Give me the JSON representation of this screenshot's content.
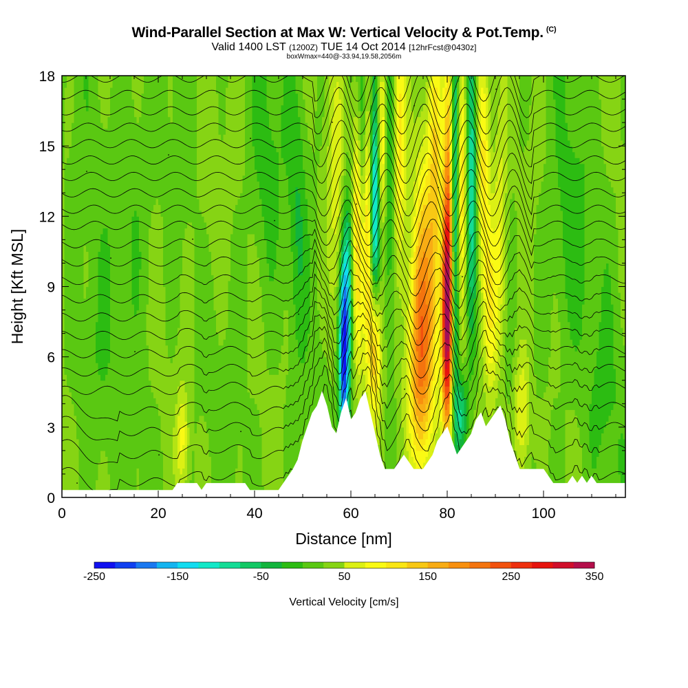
{
  "header": {
    "title": "Wind-Parallel Section at Max W: Vertical Velocity & Pot.Temp.",
    "copyright": "(C)",
    "valid_main": "Valid 1400 LST",
    "valid_utc": "(1200Z)",
    "valid_date": "TUE 14 Oct 2014",
    "valid_fcst": "[12hrFcst@0430z]",
    "box_info": "boxWmax=440@-33.94,19.58,2056m"
  },
  "colors": {
    "palette": [
      "#1010f0",
      "#1040f0",
      "#1a78f0",
      "#14b4f0",
      "#12dcf0",
      "#12e8c8",
      "#14dc96",
      "#12c864",
      "#12b43c",
      "#2cbc12",
      "#5ac812",
      "#86d414",
      "#b4e414",
      "#dcf014",
      "#fafa14",
      "#fae614",
      "#f8c814",
      "#f8ac14",
      "#f8900e",
      "#f4740e",
      "#f2520e",
      "#ee300e",
      "#e6140e",
      "#d00e2a",
      "#b40e4a",
      "#a00e5a"
    ],
    "terrain": "#ffffff",
    "contour": "#000000"
  },
  "chart_data": {
    "type": "cross-section",
    "title": "Wind-Parallel Section at Max W: Vertical Velocity & Pot.Temp.",
    "xlabel": "Distance [nm]",
    "ylabel": "Height [Kft MSL]",
    "xlim": [
      0,
      117
    ],
    "ylim": [
      0,
      18
    ],
    "x_ticks": [
      0,
      20,
      40,
      60,
      80,
      100
    ],
    "y_ticks": [
      0,
      3,
      6,
      9,
      12,
      15,
      18
    ],
    "colorbar": {
      "title": "Vertical Velocity [cm/s]",
      "min": -250,
      "max": 350,
      "step": 25,
      "labels": [
        "-250",
        "-150",
        "-50",
        "50",
        "150",
        "250",
        "350"
      ],
      "label_values": [
        -250,
        -150,
        -50,
        50,
        150,
        250,
        350
      ]
    },
    "terrain_profile": [
      [
        0,
        0.3
      ],
      [
        2,
        0.3
      ],
      [
        5,
        0.3
      ],
      [
        10,
        0.3
      ],
      [
        15,
        0.3
      ],
      [
        20,
        0.3
      ],
      [
        23,
        0.3
      ],
      [
        24,
        0.6
      ],
      [
        26,
        0.6
      ],
      [
        28,
        0.6
      ],
      [
        29,
        0.3
      ],
      [
        30,
        0.6
      ],
      [
        35,
        0.6
      ],
      [
        38,
        0.6
      ],
      [
        39,
        0.3
      ],
      [
        45,
        0.3
      ],
      [
        46,
        0.6
      ],
      [
        47,
        0.9
      ],
      [
        48,
        1.2
      ],
      [
        49,
        1.6
      ],
      [
        50,
        2.4
      ],
      [
        51,
        3.0
      ],
      [
        52,
        3.6
      ],
      [
        53,
        3.9
      ],
      [
        54,
        4.5
      ],
      [
        55,
        3.9
      ],
      [
        56,
        3.0
      ],
      [
        57,
        2.7
      ],
      [
        58,
        3.6
      ],
      [
        59,
        4.2
      ],
      [
        60,
        3.3
      ],
      [
        61,
        3.6
      ],
      [
        62,
        4.2
      ],
      [
        63,
        4.5
      ],
      [
        64,
        3.6
      ],
      [
        65,
        2.7
      ],
      [
        66,
        1.8
      ],
      [
        67,
        1.2
      ],
      [
        69,
        1.2
      ],
      [
        70,
        1.5
      ],
      [
        71,
        1.8
      ],
      [
        72,
        1.5
      ],
      [
        73,
        1.2
      ],
      [
        75,
        1.2
      ],
      [
        76,
        1.5
      ],
      [
        77,
        1.8
      ],
      [
        78,
        2.4
      ],
      [
        79,
        2.7
      ],
      [
        80,
        3.0
      ],
      [
        81,
        2.4
      ],
      [
        82,
        1.8
      ],
      [
        83,
        2.1
      ],
      [
        84,
        2.4
      ],
      [
        85,
        2.7
      ],
      [
        86,
        3.3
      ],
      [
        87,
        3.6
      ],
      [
        88,
        3.0
      ],
      [
        89,
        3.3
      ],
      [
        90,
        3.6
      ],
      [
        91,
        3.9
      ],
      [
        92,
        3.3
      ],
      [
        93,
        2.4
      ],
      [
        94,
        1.8
      ],
      [
        95,
        1.2
      ],
      [
        100,
        1.2
      ],
      [
        101,
        0.9
      ],
      [
        102,
        0.6
      ],
      [
        105,
        0.6
      ],
      [
        106,
        0.9
      ],
      [
        107,
        0.6
      ],
      [
        108,
        0.9
      ],
      [
        109,
        0.6
      ],
      [
        110,
        0.9
      ],
      [
        111,
        0.6
      ],
      [
        117,
        0.6
      ]
    ],
    "w_features": [
      {
        "x": 58.5,
        "y": 6.0,
        "sx": 0.7,
        "sy": 3.0,
        "w": -240
      },
      {
        "x": 59.5,
        "y": 9.0,
        "sx": 0.8,
        "sy": 3.0,
        "w": -120
      },
      {
        "x": 61.5,
        "y": 11.5,
        "sx": 0.9,
        "sy": 4.0,
        "w": 140
      },
      {
        "x": 62.5,
        "y": 14.5,
        "sx": 0.8,
        "sy": 3.5,
        "w": -90
      },
      {
        "x": 63.5,
        "y": 12.0,
        "sx": 0.7,
        "sy": 4.0,
        "w": 160
      },
      {
        "x": 65.0,
        "y": 12.5,
        "sx": 0.8,
        "sy": 4.0,
        "w": -180
      },
      {
        "x": 65.0,
        "y": 6.5,
        "sx": 0.9,
        "sy": 2.2,
        "w": 180
      },
      {
        "x": 66.5,
        "y": 15.0,
        "sx": 0.8,
        "sy": 3.0,
        "w": 150
      },
      {
        "x": 68.0,
        "y": 14.0,
        "sx": 1.0,
        "sy": 4.0,
        "w": -80
      },
      {
        "x": 70.0,
        "y": 15.0,
        "sx": 1.1,
        "sy": 4.0,
        "w": 120
      },
      {
        "x": 74.5,
        "y": 5.5,
        "sx": 2.0,
        "sy": 3.5,
        "w": 200
      },
      {
        "x": 75.0,
        "y": 11.0,
        "sx": 1.6,
        "sy": 3.5,
        "w": 90
      },
      {
        "x": 77.5,
        "y": 14.0,
        "sx": 1.0,
        "sy": 5.0,
        "w": 110
      },
      {
        "x": 80.0,
        "y": 7.5,
        "sx": 0.8,
        "sy": 3.5,
        "w": 330
      },
      {
        "x": 80.5,
        "y": 14.0,
        "sx": 0.8,
        "sy": 5.0,
        "w": 180
      },
      {
        "x": 81.5,
        "y": 12.0,
        "sx": 0.7,
        "sy": 6.0,
        "w": -200
      },
      {
        "x": 83.0,
        "y": 3.5,
        "sx": 0.9,
        "sy": 1.2,
        "w": -100
      },
      {
        "x": 83.0,
        "y": 14.0,
        "sx": 0.8,
        "sy": 4.0,
        "w": 140
      },
      {
        "x": 85.0,
        "y": 14.0,
        "sx": 0.8,
        "sy": 5.0,
        "w": -120
      },
      {
        "x": 87.5,
        "y": 14.5,
        "sx": 1.0,
        "sy": 4.0,
        "w": 120
      },
      {
        "x": 89.0,
        "y": 8.0,
        "sx": 1.0,
        "sy": 3.0,
        "w": 90
      },
      {
        "x": 91.0,
        "y": 11.0,
        "sx": 1.0,
        "sy": 4.0,
        "w": 80
      },
      {
        "x": 95.5,
        "y": 3.5,
        "sx": 1.2,
        "sy": 2.0,
        "w": 90
      },
      {
        "x": 25.0,
        "y": 2.5,
        "sx": 0.9,
        "sy": 1.5,
        "w": 80
      },
      {
        "x": 57.0,
        "y": 13.0,
        "sx": 1.3,
        "sy": 4.5,
        "w": 60
      },
      {
        "x": 49.0,
        "y": 12.0,
        "sx": 1.2,
        "sy": 4.0,
        "w": -40
      },
      {
        "x": 42.0,
        "y": 14.0,
        "sx": 2.5,
        "sy": 4.0,
        "w": -30
      },
      {
        "x": 30.0,
        "y": 12.0,
        "sx": 2.0,
        "sy": 4.0,
        "w": 20
      },
      {
        "x": 15.0,
        "y": 13.0,
        "sx": 3.0,
        "sy": 4.0,
        "w": -25
      },
      {
        "x": 6.0,
        "y": 5.0,
        "sx": 3.0,
        "sy": 3.0,
        "w": -20
      },
      {
        "x": 105.0,
        "y": 11.0,
        "sx": 3.0,
        "sy": 4.0,
        "w": -30
      },
      {
        "x": 112.0,
        "y": 4.0,
        "sx": 3.0,
        "sy": 3.0,
        "w": -20
      }
    ],
    "theta_levels": [
      0.4,
      1.6,
      2.6,
      3.5,
      4.4,
      5.2,
      6.0,
      6.8,
      7.6,
      8.4,
      9.2,
      10.0,
      10.8,
      11.6,
      12.3,
      13.0,
      13.7,
      14.4,
      15.1,
      15.8,
      16.5,
      17.2,
      17.9
    ],
    "contour_label_text": "•"
  }
}
